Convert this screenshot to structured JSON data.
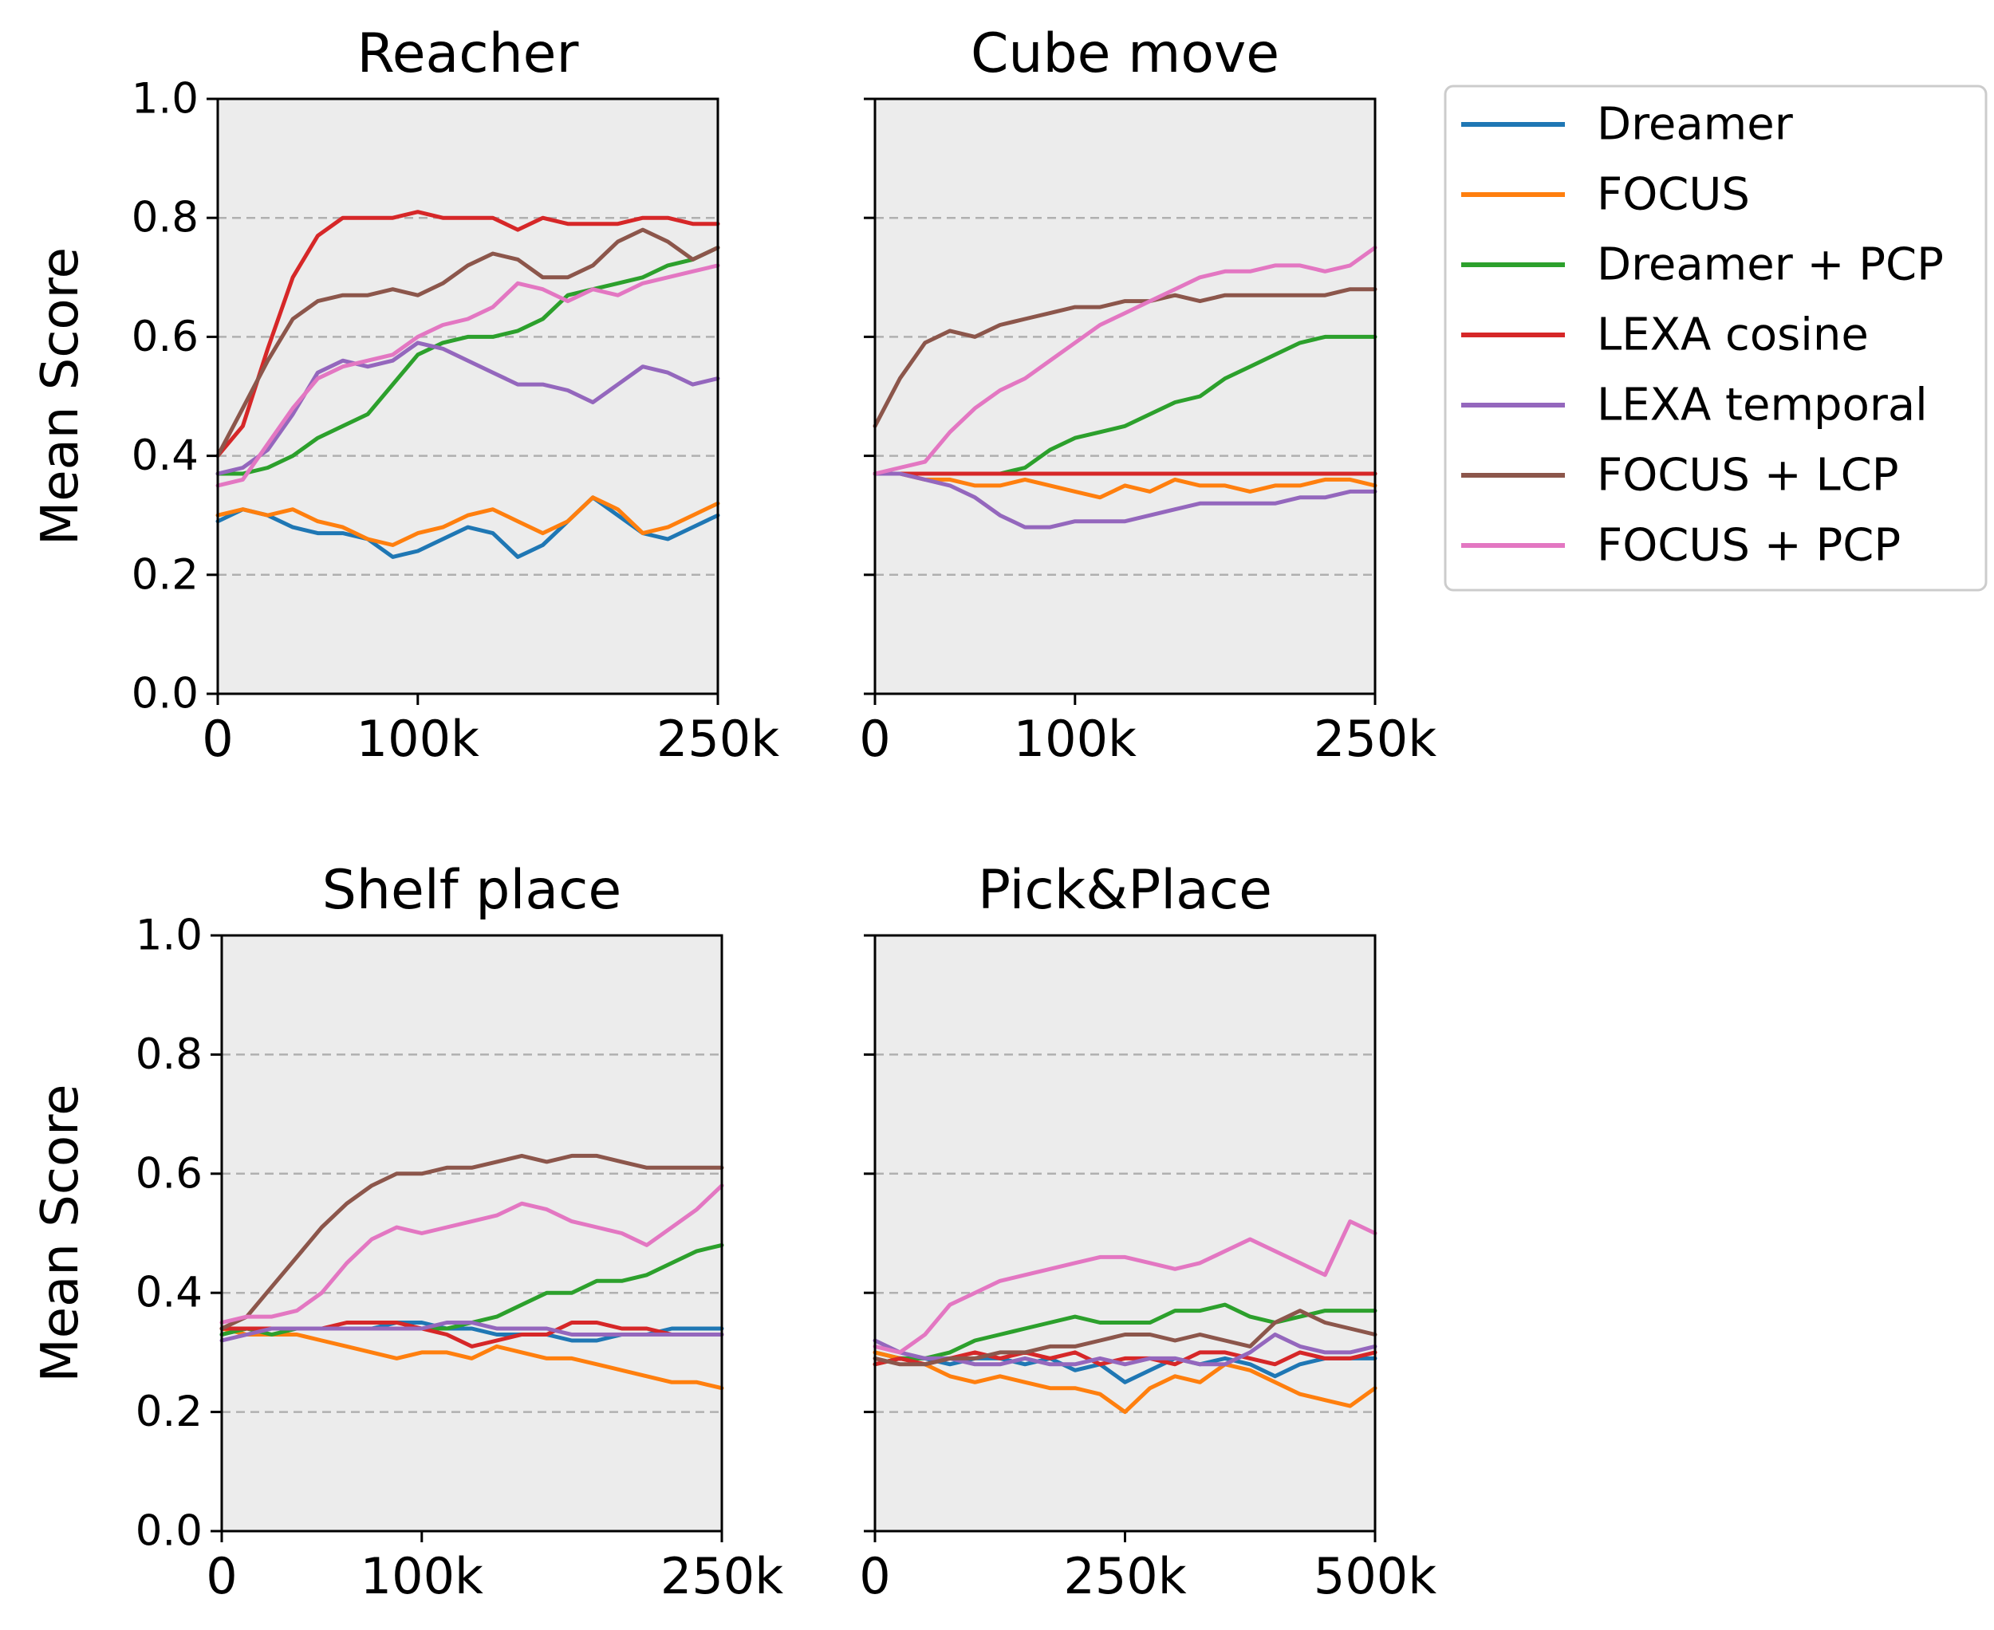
{
  "chart_data": [
    {
      "type": "line",
      "title": "Reacher",
      "xlabel": "",
      "ylabel": "Mean Score",
      "xlim": [
        0,
        250000
      ],
      "ylim": [
        0,
        1
      ],
      "xticks": [
        {
          "value": 0,
          "label": "0"
        },
        {
          "value": 100000,
          "label": "100k"
        },
        {
          "value": 250000,
          "label": "250k"
        }
      ],
      "yticks": [
        {
          "value": 0.0,
          "label": "0.0"
        },
        {
          "value": 0.2,
          "label": "0.2"
        },
        {
          "value": 0.4,
          "label": "0.4"
        },
        {
          "value": 0.6,
          "label": "0.6"
        },
        {
          "value": 0.8,
          "label": "0.8"
        },
        {
          "value": 1.0,
          "label": "1.0"
        }
      ],
      "grid": "horizontal dashed",
      "x": [
        0,
        12500,
        25000,
        37500,
        50000,
        62500,
        75000,
        87500,
        100000,
        112500,
        125000,
        137500,
        150000,
        162500,
        175000,
        187500,
        200000,
        212500,
        225000,
        237500,
        250000
      ],
      "series": [
        {
          "name": "Dreamer",
          "values": [
            0.29,
            0.31,
            0.3,
            0.28,
            0.27,
            0.27,
            0.26,
            0.23,
            0.24,
            0.26,
            0.28,
            0.27,
            0.23,
            0.25,
            0.29,
            0.33,
            0.3,
            0.27,
            0.26,
            0.28,
            0.3
          ]
        },
        {
          "name": "FOCUS",
          "values": [
            0.3,
            0.31,
            0.3,
            0.31,
            0.29,
            0.28,
            0.26,
            0.25,
            0.27,
            0.28,
            0.3,
            0.31,
            0.29,
            0.27,
            0.29,
            0.33,
            0.31,
            0.27,
            0.28,
            0.3,
            0.32
          ]
        },
        {
          "name": "Dreamer + PCP",
          "values": [
            0.37,
            0.37,
            0.38,
            0.4,
            0.43,
            0.45,
            0.47,
            0.52,
            0.57,
            0.59,
            0.6,
            0.6,
            0.61,
            0.63,
            0.67,
            0.68,
            0.69,
            0.7,
            0.72,
            0.73,
            0.75
          ]
        },
        {
          "name": "LEXA cosine",
          "values": [
            0.4,
            0.45,
            0.58,
            0.7,
            0.77,
            0.8,
            0.8,
            0.8,
            0.81,
            0.8,
            0.8,
            0.8,
            0.78,
            0.8,
            0.79,
            0.79,
            0.79,
            0.8,
            0.8,
            0.79,
            0.79
          ]
        },
        {
          "name": "LEXA temporal",
          "values": [
            0.37,
            0.38,
            0.41,
            0.47,
            0.54,
            0.56,
            0.55,
            0.56,
            0.59,
            0.58,
            0.56,
            0.54,
            0.52,
            0.52,
            0.51,
            0.49,
            0.52,
            0.55,
            0.54,
            0.52,
            0.53
          ]
        },
        {
          "name": "FOCUS + LCP",
          "values": [
            0.4,
            0.48,
            0.56,
            0.63,
            0.66,
            0.67,
            0.67,
            0.68,
            0.67,
            0.69,
            0.72,
            0.74,
            0.73,
            0.7,
            0.7,
            0.72,
            0.76,
            0.78,
            0.76,
            0.73,
            0.75
          ]
        },
        {
          "name": "FOCUS + PCP",
          "values": [
            0.35,
            0.36,
            0.42,
            0.48,
            0.53,
            0.55,
            0.56,
            0.57,
            0.6,
            0.62,
            0.63,
            0.65,
            0.69,
            0.68,
            0.66,
            0.68,
            0.67,
            0.69,
            0.7,
            0.71,
            0.72
          ]
        }
      ]
    },
    {
      "type": "line",
      "title": "Cube move",
      "xlabel": "",
      "ylabel": "",
      "xlim": [
        0,
        250000
      ],
      "ylim": [
        0,
        1
      ],
      "xticks": [
        {
          "value": 0,
          "label": "0"
        },
        {
          "value": 100000,
          "label": "100k"
        },
        {
          "value": 250000,
          "label": "250k"
        }
      ],
      "yticks": [
        {
          "value": 0.0,
          "label": ""
        },
        {
          "value": 0.2,
          "label": ""
        },
        {
          "value": 0.4,
          "label": ""
        },
        {
          "value": 0.6,
          "label": ""
        },
        {
          "value": 0.8,
          "label": ""
        },
        {
          "value": 1.0,
          "label": ""
        }
      ],
      "grid": "horizontal dashed",
      "x": [
        0,
        12500,
        25000,
        37500,
        50000,
        62500,
        75000,
        87500,
        100000,
        112500,
        125000,
        137500,
        150000,
        162500,
        175000,
        187500,
        200000,
        212500,
        225000,
        237500,
        250000
      ],
      "series": [
        {
          "name": "Dreamer",
          "values": [
            0.37,
            0.37,
            0.37,
            0.37,
            0.37,
            0.37,
            0.37,
            0.37,
            0.37,
            0.37,
            0.37,
            0.37,
            0.37,
            0.37,
            0.37,
            0.37,
            0.37,
            0.37,
            0.37,
            0.37,
            0.37
          ]
        },
        {
          "name": "FOCUS",
          "values": [
            0.37,
            0.37,
            0.36,
            0.36,
            0.35,
            0.35,
            0.36,
            0.35,
            0.34,
            0.33,
            0.35,
            0.34,
            0.36,
            0.35,
            0.35,
            0.34,
            0.35,
            0.35,
            0.36,
            0.36,
            0.35
          ]
        },
        {
          "name": "Dreamer + PCP",
          "values": [
            0.37,
            0.37,
            0.37,
            0.37,
            0.37,
            0.37,
            0.38,
            0.41,
            0.43,
            0.44,
            0.45,
            0.47,
            0.49,
            0.5,
            0.53,
            0.55,
            0.57,
            0.59,
            0.6,
            0.6,
            0.6
          ]
        },
        {
          "name": "LEXA cosine",
          "values": [
            0.37,
            0.37,
            0.37,
            0.37,
            0.37,
            0.37,
            0.37,
            0.37,
            0.37,
            0.37,
            0.37,
            0.37,
            0.37,
            0.37,
            0.37,
            0.37,
            0.37,
            0.37,
            0.37,
            0.37,
            0.37
          ]
        },
        {
          "name": "LEXA temporal",
          "values": [
            0.37,
            0.37,
            0.36,
            0.35,
            0.33,
            0.3,
            0.28,
            0.28,
            0.29,
            0.29,
            0.29,
            0.3,
            0.31,
            0.32,
            0.32,
            0.32,
            0.32,
            0.33,
            0.33,
            0.34,
            0.34
          ]
        },
        {
          "name": "FOCUS + LCP",
          "values": [
            0.45,
            0.53,
            0.59,
            0.61,
            0.6,
            0.62,
            0.63,
            0.64,
            0.65,
            0.65,
            0.66,
            0.66,
            0.67,
            0.66,
            0.67,
            0.67,
            0.67,
            0.67,
            0.67,
            0.68,
            0.68
          ]
        },
        {
          "name": "FOCUS + PCP",
          "values": [
            0.37,
            0.38,
            0.39,
            0.44,
            0.48,
            0.51,
            0.53,
            0.56,
            0.59,
            0.62,
            0.64,
            0.66,
            0.68,
            0.7,
            0.71,
            0.71,
            0.72,
            0.72,
            0.71,
            0.72,
            0.75
          ]
        }
      ]
    },
    {
      "type": "line",
      "title": "Shelf place",
      "xlabel": "",
      "ylabel": "Mean Score",
      "xlim": [
        0,
        250000
      ],
      "ylim": [
        0,
        1
      ],
      "xticks": [
        {
          "value": 0,
          "label": "0"
        },
        {
          "value": 100000,
          "label": "100k"
        },
        {
          "value": 250000,
          "label": "250k"
        }
      ],
      "yticks": [
        {
          "value": 0.0,
          "label": "0.0"
        },
        {
          "value": 0.2,
          "label": "0.2"
        },
        {
          "value": 0.4,
          "label": "0.4"
        },
        {
          "value": 0.6,
          "label": "0.6"
        },
        {
          "value": 0.8,
          "label": "0.8"
        },
        {
          "value": 1.0,
          "label": "1.0"
        }
      ],
      "grid": "horizontal dashed",
      "x": [
        0,
        12500,
        25000,
        37500,
        50000,
        62500,
        75000,
        87500,
        100000,
        112500,
        125000,
        137500,
        150000,
        162500,
        175000,
        187500,
        200000,
        212500,
        225000,
        237500,
        250000
      ],
      "series": [
        {
          "name": "Dreamer",
          "values": [
            0.33,
            0.34,
            0.34,
            0.34,
            0.34,
            0.34,
            0.34,
            0.35,
            0.35,
            0.34,
            0.34,
            0.33,
            0.33,
            0.33,
            0.32,
            0.32,
            0.33,
            0.33,
            0.34,
            0.34,
            0.34
          ]
        },
        {
          "name": "FOCUS",
          "values": [
            0.34,
            0.33,
            0.33,
            0.33,
            0.32,
            0.31,
            0.3,
            0.29,
            0.3,
            0.3,
            0.29,
            0.31,
            0.3,
            0.29,
            0.29,
            0.28,
            0.27,
            0.26,
            0.25,
            0.25,
            0.24
          ]
        },
        {
          "name": "Dreamer + PCP",
          "values": [
            0.33,
            0.34,
            0.33,
            0.34,
            0.34,
            0.34,
            0.34,
            0.34,
            0.34,
            0.34,
            0.35,
            0.36,
            0.38,
            0.4,
            0.4,
            0.42,
            0.42,
            0.43,
            0.45,
            0.47,
            0.48
          ]
        },
        {
          "name": "LEXA cosine",
          "values": [
            0.34,
            0.34,
            0.34,
            0.34,
            0.34,
            0.35,
            0.35,
            0.35,
            0.34,
            0.33,
            0.31,
            0.32,
            0.33,
            0.33,
            0.35,
            0.35,
            0.34,
            0.34,
            0.33,
            0.33,
            0.33
          ]
        },
        {
          "name": "LEXA temporal",
          "values": [
            0.32,
            0.33,
            0.34,
            0.34,
            0.34,
            0.34,
            0.34,
            0.34,
            0.34,
            0.35,
            0.35,
            0.34,
            0.34,
            0.34,
            0.33,
            0.33,
            0.33,
            0.33,
            0.33,
            0.33,
            0.33
          ]
        },
        {
          "name": "FOCUS + LCP",
          "values": [
            0.34,
            0.36,
            0.41,
            0.46,
            0.51,
            0.55,
            0.58,
            0.6,
            0.6,
            0.61,
            0.61,
            0.62,
            0.63,
            0.62,
            0.63,
            0.63,
            0.62,
            0.61,
            0.61,
            0.61,
            0.61
          ]
        },
        {
          "name": "FOCUS + PCP",
          "values": [
            0.35,
            0.36,
            0.36,
            0.37,
            0.4,
            0.45,
            0.49,
            0.51,
            0.5,
            0.51,
            0.52,
            0.53,
            0.55,
            0.54,
            0.52,
            0.51,
            0.5,
            0.48,
            0.51,
            0.54,
            0.58
          ]
        }
      ]
    },
    {
      "type": "line",
      "title": "Pick&Place",
      "xlabel": "",
      "ylabel": "",
      "xlim": [
        0,
        500000
      ],
      "ylim": [
        0,
        1
      ],
      "xticks": [
        {
          "value": 0,
          "label": "0"
        },
        {
          "value": 250000,
          "label": "250k"
        },
        {
          "value": 500000,
          "label": "500k"
        }
      ],
      "yticks": [
        {
          "value": 0.0,
          "label": ""
        },
        {
          "value": 0.2,
          "label": ""
        },
        {
          "value": 0.4,
          "label": ""
        },
        {
          "value": 0.6,
          "label": ""
        },
        {
          "value": 0.8,
          "label": ""
        },
        {
          "value": 1.0,
          "label": ""
        }
      ],
      "grid": "horizontal dashed",
      "x": [
        0,
        25000,
        50000,
        75000,
        100000,
        125000,
        150000,
        175000,
        200000,
        225000,
        250000,
        275000,
        300000,
        325000,
        350000,
        375000,
        400000,
        425000,
        450000,
        475000,
        500000
      ],
      "series": [
        {
          "name": "Dreamer",
          "values": [
            0.3,
            0.29,
            0.29,
            0.28,
            0.29,
            0.29,
            0.28,
            0.29,
            0.27,
            0.28,
            0.25,
            0.27,
            0.29,
            0.28,
            0.29,
            0.28,
            0.26,
            0.28,
            0.29,
            0.29,
            0.29
          ]
        },
        {
          "name": "FOCUS",
          "values": [
            0.3,
            0.29,
            0.28,
            0.26,
            0.25,
            0.26,
            0.25,
            0.24,
            0.24,
            0.23,
            0.2,
            0.24,
            0.26,
            0.25,
            0.28,
            0.27,
            0.25,
            0.23,
            0.22,
            0.21,
            0.24
          ]
        },
        {
          "name": "Dreamer + PCP",
          "values": [
            0.28,
            0.29,
            0.29,
            0.3,
            0.32,
            0.33,
            0.34,
            0.35,
            0.36,
            0.35,
            0.35,
            0.35,
            0.37,
            0.37,
            0.38,
            0.36,
            0.35,
            0.36,
            0.37,
            0.37,
            0.37
          ]
        },
        {
          "name": "LEXA cosine",
          "values": [
            0.28,
            0.29,
            0.28,
            0.29,
            0.3,
            0.29,
            0.3,
            0.29,
            0.3,
            0.28,
            0.29,
            0.29,
            0.28,
            0.3,
            0.3,
            0.29,
            0.28,
            0.3,
            0.29,
            0.29,
            0.3
          ]
        },
        {
          "name": "LEXA temporal",
          "values": [
            0.32,
            0.3,
            0.29,
            0.29,
            0.28,
            0.28,
            0.29,
            0.28,
            0.28,
            0.29,
            0.28,
            0.29,
            0.29,
            0.28,
            0.28,
            0.3,
            0.33,
            0.31,
            0.3,
            0.3,
            0.31
          ]
        },
        {
          "name": "FOCUS + LCP",
          "values": [
            0.29,
            0.28,
            0.28,
            0.29,
            0.29,
            0.3,
            0.3,
            0.31,
            0.31,
            0.32,
            0.33,
            0.33,
            0.32,
            0.33,
            0.32,
            0.31,
            0.35,
            0.37,
            0.35,
            0.34,
            0.33
          ]
        },
        {
          "name": "FOCUS + PCP",
          "values": [
            0.31,
            0.3,
            0.33,
            0.38,
            0.4,
            0.42,
            0.43,
            0.44,
            0.45,
            0.46,
            0.46,
            0.45,
            0.44,
            0.45,
            0.47,
            0.49,
            0.47,
            0.45,
            0.43,
            0.52,
            0.5
          ]
        }
      ]
    }
  ],
  "legend": {
    "placement": "right of top-right panel",
    "items": [
      {
        "label": "Dreamer",
        "color": "#1f77b4"
      },
      {
        "label": "FOCUS",
        "color": "#ff7f0e"
      },
      {
        "label": "Dreamer + PCP",
        "color": "#2ca02c"
      },
      {
        "label": "LEXA cosine",
        "color": "#d62728"
      },
      {
        "label": "LEXA temporal",
        "color": "#9467bd"
      },
      {
        "label": "FOCUS + LCP",
        "color": "#8c564b"
      },
      {
        "label": "FOCUS + PCP",
        "color": "#e377c2"
      }
    ]
  },
  "colors": {
    "plot_background": "#ececec",
    "grid": "#b0b0b0"
  }
}
